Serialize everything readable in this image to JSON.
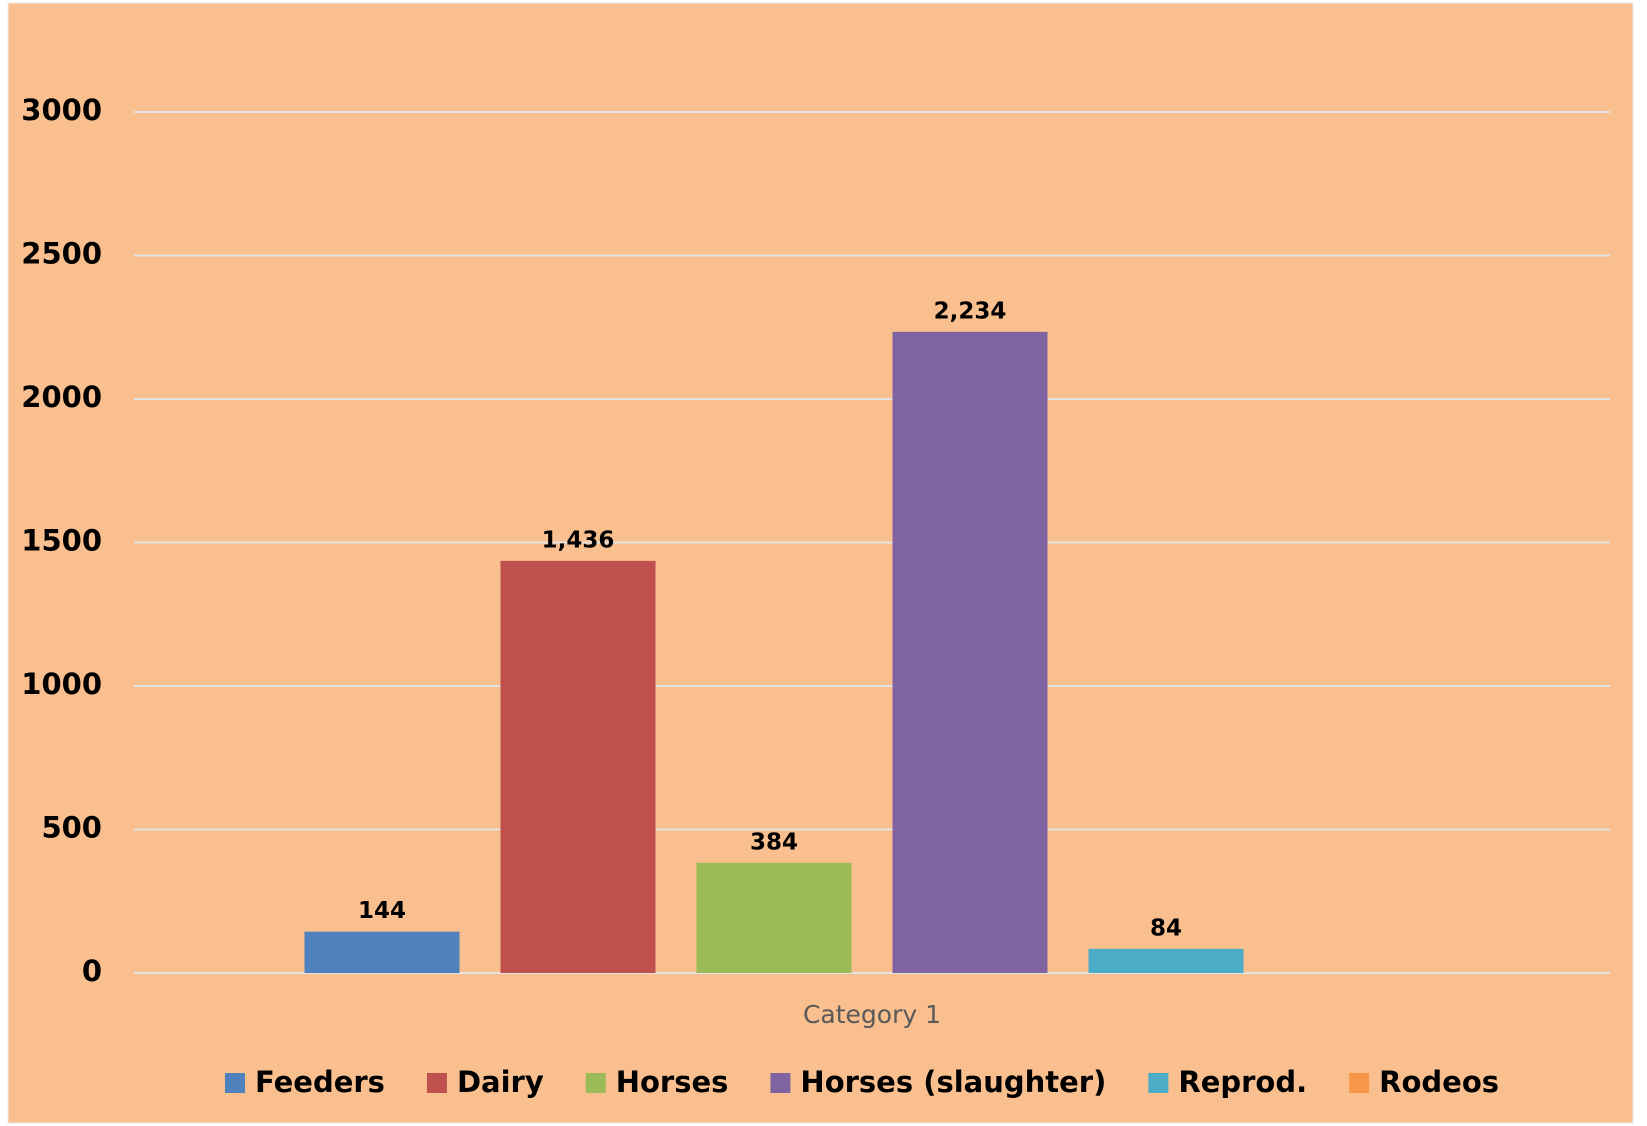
{
  "chart_data": {
    "type": "bar",
    "categories": [
      "Category 1"
    ],
    "series": [
      {
        "name": "Feeders",
        "color": "#4f81bd",
        "values": [
          144
        ]
      },
      {
        "name": "Dairy",
        "color": "#c0504d",
        "values": [
          1436
        ],
        "value_labels": [
          "1,436"
        ]
      },
      {
        "name": "Horses",
        "color": "#9bbb59",
        "values": [
          384
        ]
      },
      {
        "name": "Horses (slaughter)",
        "color": "#8064a2",
        "values": [
          2234
        ],
        "value_labels": [
          "2,234"
        ]
      },
      {
        "name": "Reprod.",
        "color": "#4bacc6",
        "values": [
          84
        ]
      },
      {
        "name": "Rodeos",
        "color": "#f79646",
        "values": [
          null
        ]
      }
    ],
    "ylim": [
      0,
      3000
    ],
    "yticks": [
      0,
      500,
      1000,
      1500,
      2000,
      2500,
      3000
    ],
    "grid": true,
    "legend": "bottom"
  }
}
